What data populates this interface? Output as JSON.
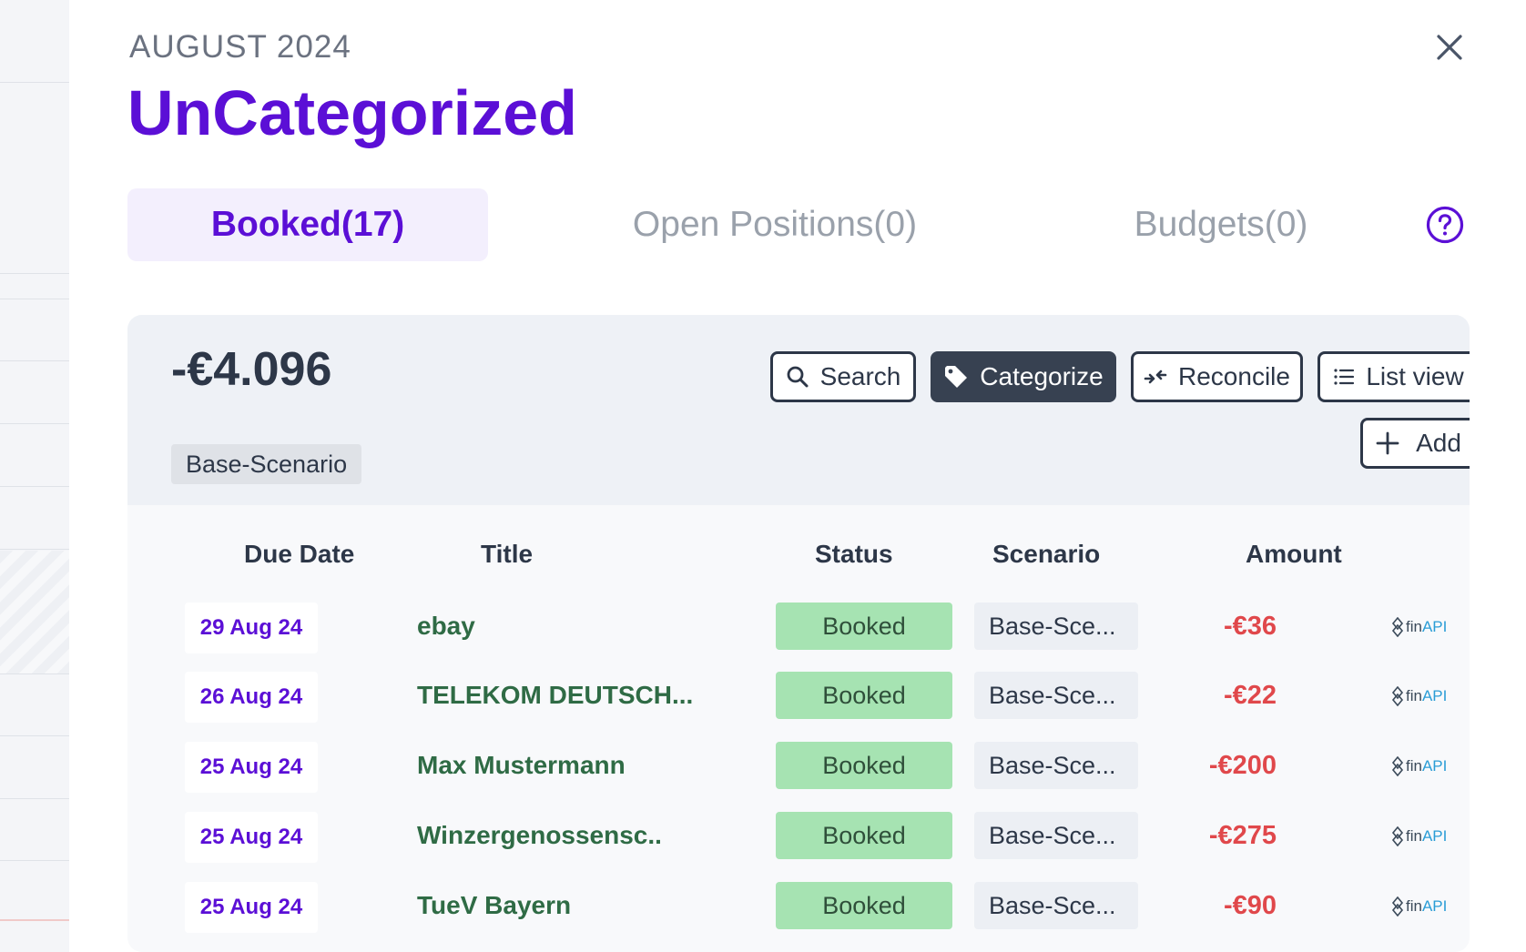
{
  "panel": {
    "month": "AUGUST 2024",
    "title": "UnCategorized"
  },
  "tabs": [
    {
      "label": "Booked(17)",
      "active": true
    },
    {
      "label": "Open Positions(0)",
      "active": false
    },
    {
      "label": "Budgets(0)",
      "active": false
    }
  ],
  "summary": {
    "total": "-€4.096",
    "scenario": "Base-Scenario"
  },
  "toolbar": {
    "search_label": "Search",
    "categorize_label": "Categorize",
    "reconcile_label": "Reconcile",
    "list_view_label": "List view",
    "add_label": "Add"
  },
  "table": {
    "headers": {
      "due_date": "Due Date",
      "title": "Title",
      "status": "Status",
      "scenario": "Scenario",
      "amount": "Amount"
    },
    "rows": [
      {
        "date": "29 Aug 24",
        "title": "ebay",
        "status": "Booked",
        "scenario": "Base-Sce...",
        "amount": "-€36",
        "source": "finAPI"
      },
      {
        "date": "26 Aug 24",
        "title": "TELEKOM DEUTSCH...",
        "status": "Booked",
        "scenario": "Base-Sce...",
        "amount": "-€22",
        "source": "finAPI"
      },
      {
        "date": "25 Aug 24",
        "title": "Max Mustermann",
        "status": "Booked",
        "scenario": "Base-Sce...",
        "amount": "-€200",
        "source": "finAPI"
      },
      {
        "date": "25 Aug 24",
        "title": "Winzergenossensc..",
        "status": "Booked",
        "scenario": "Base-Sce...",
        "amount": "-€275",
        "source": "finAPI"
      },
      {
        "date": "25 Aug 24",
        "title": "TueV Bayern",
        "status": "Booked",
        "scenario": "Base-Sce...",
        "amount": "-€90",
        "source": "finAPI"
      }
    ]
  },
  "colors": {
    "accent": "#5b0fd6",
    "status_booked_bg": "#a6e3b2",
    "amount_negative": "#e0484b",
    "title_text": "#2f6b45"
  },
  "icons": {
    "close": "close-icon",
    "help": "help-circle-icon",
    "search": "search-icon",
    "categorize": "tag-icon",
    "reconcile": "reconcile-arrows-icon",
    "list_view": "list-icon",
    "add": "plus-icon",
    "source_logo": "finapi-logo-icon"
  }
}
